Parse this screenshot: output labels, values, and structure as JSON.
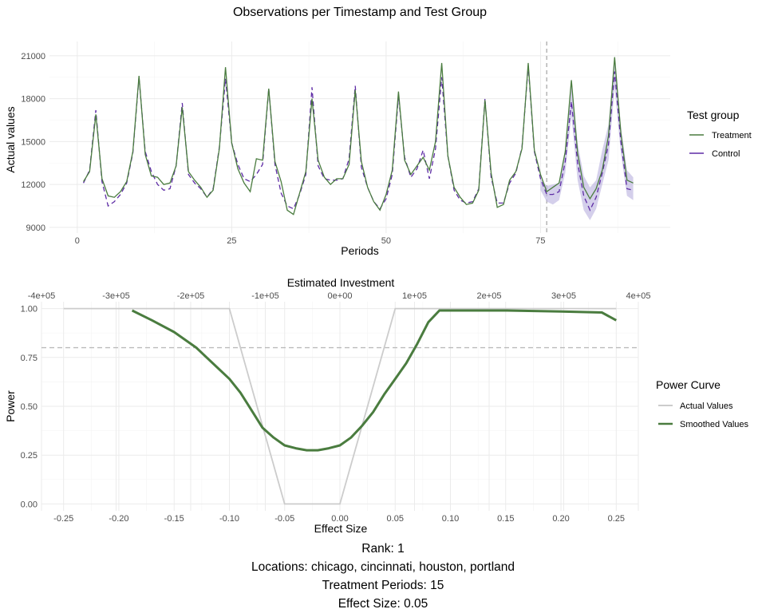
{
  "chart_data": [
    {
      "type": "line",
      "title": "Observations per Timestamp and Test Group",
      "xlabel": "Periods",
      "ylabel": "Actual values",
      "xlim": [
        -4.5,
        96
      ],
      "ylim": [
        8600,
        22000
      ],
      "x_ticks": [
        0,
        25,
        50,
        75
      ],
      "y_ticks": [
        9000,
        12000,
        15000,
        18000,
        21000
      ],
      "treatment_start": 76,
      "legend_title": "Test group",
      "legend_position": "right",
      "colors": {
        "treatment": "#4a7c3f",
        "control": "#5e2ca5",
        "band": "#bdb5e0"
      },
      "series": [
        {
          "name": "Treatment",
          "style": "solid",
          "x": [
            1,
            2,
            3,
            4,
            5,
            6,
            7,
            8,
            9,
            10,
            11,
            12,
            13,
            14,
            15,
            16,
            17,
            18,
            19,
            20,
            21,
            22,
            23,
            24,
            25,
            26,
            27,
            28,
            29,
            30,
            31,
            32,
            33,
            34,
            35,
            36,
            37,
            38,
            39,
            40,
            41,
            42,
            43,
            44,
            45,
            46,
            47,
            48,
            49,
            50,
            51,
            52,
            53,
            54,
            55,
            56,
            57,
            58,
            59,
            60,
            61,
            62,
            63,
            64,
            65,
            66,
            67,
            68,
            69,
            70,
            71,
            72,
            73,
            74,
            75,
            76,
            77,
            78,
            79,
            80,
            81,
            82,
            83,
            84,
            85,
            86,
            87,
            88,
            89,
            90
          ],
          "values": [
            12200,
            12900,
            16900,
            12400,
            11200,
            11100,
            11500,
            12200,
            14300,
            19600,
            14100,
            12600,
            12500,
            12000,
            12100,
            13300,
            17400,
            12900,
            12300,
            11800,
            11100,
            11600,
            14500,
            20200,
            14900,
            13100,
            12100,
            11500,
            13800,
            13700,
            18700,
            13600,
            12200,
            10200,
            9900,
            11400,
            12900,
            18000,
            13700,
            12500,
            12000,
            12400,
            12400,
            13400,
            18600,
            13600,
            11800,
            10800,
            10200,
            11300,
            13000,
            18500,
            13700,
            12700,
            13300,
            13900,
            13000,
            15000,
            20500,
            14000,
            11800,
            11100,
            10600,
            10700,
            11600,
            17900,
            12800,
            10400,
            10600,
            12300,
            12900,
            14500,
            20500,
            14400,
            12700,
            11500,
            11800,
            12100,
            14300,
            19300,
            14200,
            11800,
            11000,
            11700,
            13000,
            15400,
            20900,
            15600,
            12300,
            12100
          ]
        },
        {
          "name": "Control",
          "style": "dashed",
          "x": [
            1,
            2,
            3,
            4,
            5,
            6,
            7,
            8,
            9,
            10,
            11,
            12,
            13,
            14,
            15,
            16,
            17,
            18,
            19,
            20,
            21,
            22,
            23,
            24,
            25,
            26,
            27,
            28,
            29,
            30,
            31,
            32,
            33,
            34,
            35,
            36,
            37,
            38,
            39,
            40,
            41,
            42,
            43,
            44,
            45,
            46,
            47,
            48,
            49,
            50,
            51,
            52,
            53,
            54,
            55,
            56,
            57,
            58,
            59,
            60,
            61,
            62,
            63,
            64,
            65,
            66,
            67,
            68,
            69,
            70,
            71,
            72,
            73,
            74,
            75,
            76,
            77,
            78,
            79,
            80,
            81,
            82,
            83,
            84,
            85,
            86,
            87,
            88,
            89,
            90
          ],
          "values": [
            12100,
            13000,
            17200,
            12200,
            10500,
            10800,
            11300,
            12100,
            14200,
            19500,
            14300,
            12900,
            12000,
            11600,
            11700,
            13300,
            17700,
            12700,
            12100,
            11700,
            11100,
            11700,
            14600,
            19400,
            14900,
            13400,
            12400,
            12200,
            12700,
            13400,
            18700,
            13400,
            11400,
            10500,
            10300,
            11300,
            12700,
            18800,
            13300,
            12400,
            12300,
            12300,
            12400,
            13800,
            18900,
            13200,
            11800,
            10800,
            10300,
            11000,
            12700,
            18200,
            13900,
            12500,
            13100,
            14400,
            12400,
            14500,
            19500,
            14000,
            11600,
            10900,
            10700,
            10800,
            11700,
            18000,
            12500,
            10700,
            10700,
            12100,
            12800,
            14600,
            20300,
            14300,
            12400,
            11300,
            11300,
            11500,
            13600,
            17800,
            13500,
            11200,
            10200,
            11100,
            12800,
            14800,
            19900,
            15000,
            11700,
            11600
          ]
        },
        {
          "name": "",
          "style": "band",
          "x": [
            75,
            76,
            77,
            78,
            79,
            80,
            81,
            82,
            83,
            84,
            85,
            86,
            87,
            88,
            89,
            90
          ],
          "lower": [
            11600,
            10800,
            10600,
            10900,
            12800,
            16800,
            12300,
            10200,
            9500,
            10300,
            12000,
            13700,
            18800,
            14200,
            11200,
            10900
          ],
          "upper": [
            12400,
            11900,
            12000,
            12100,
            14500,
            19400,
            14900,
            12600,
            11800,
            12300,
            14400,
            16200,
            21000,
            16100,
            13000,
            12500
          ]
        }
      ]
    },
    {
      "type": "line",
      "title": "",
      "xlabel": "Effect Size",
      "ylabel": "Power",
      "secondary_xlabel": "Estimated Investment",
      "xlim": [
        -0.27,
        0.27
      ],
      "ylim": [
        -0.035,
        1.035
      ],
      "x_ticks": [
        "-0.25",
        "-0.20",
        "-0.15",
        "-0.10",
        "-0.05",
        "0.00",
        "0.05",
        "0.10",
        "0.15",
        "0.20",
        "0.25"
      ],
      "y_ticks": [
        "0.00",
        "0.25",
        "0.50",
        "0.75",
        "1.00"
      ],
      "secondary_x_ticks": [
        "-4e+05",
        "-3e+05",
        "-2e+05",
        "-1e+05",
        "0e+00",
        "1e+05",
        "2e+05",
        "3e+05",
        "4e+05"
      ],
      "secondary_x_values": [
        -400000,
        -300000,
        -200000,
        -100000,
        0,
        100000,
        200000,
        300000,
        400000
      ],
      "secondary_xlim": [
        -400000,
        400000
      ],
      "reference_power": 0.8,
      "legend_title": "Power Curve",
      "legend_position": "right",
      "colors": {
        "actual": "#cccccc",
        "smoothed": "#4a7c3f"
      },
      "series": [
        {
          "name": "Actual Values",
          "x": [
            -0.25,
            -0.2,
            -0.15,
            -0.1,
            -0.05,
            0.0,
            0.05,
            0.1,
            0.15,
            0.2,
            0.25
          ],
          "values": [
            1.0,
            1.0,
            1.0,
            1.0,
            0.0,
            0.0,
            1.0,
            1.0,
            1.0,
            1.0,
            1.0
          ]
        },
        {
          "name": "Smoothed Values",
          "x": [
            -0.188,
            -0.17,
            -0.15,
            -0.13,
            -0.115,
            -0.1,
            -0.09,
            -0.08,
            -0.07,
            -0.06,
            -0.05,
            -0.04,
            -0.03,
            -0.02,
            -0.01,
            0.0,
            0.01,
            0.02,
            0.03,
            0.04,
            0.05,
            0.06,
            0.07,
            0.08,
            0.09,
            0.1,
            0.15,
            0.2,
            0.237,
            0.25
          ],
          "values": [
            0.99,
            0.94,
            0.88,
            0.8,
            0.72,
            0.64,
            0.57,
            0.48,
            0.39,
            0.34,
            0.3,
            0.285,
            0.275,
            0.275,
            0.285,
            0.3,
            0.34,
            0.4,
            0.47,
            0.56,
            0.64,
            0.72,
            0.82,
            0.93,
            0.99,
            0.99,
            0.99,
            0.985,
            0.98,
            0.94
          ]
        }
      ]
    }
  ],
  "footer": {
    "rank": "Rank: 1",
    "locations": "Locations: chicago, cincinnati, houston, portland",
    "treatment_periods": "Treatment Periods: 15",
    "effect_size": "Effect Size:  0.05"
  }
}
